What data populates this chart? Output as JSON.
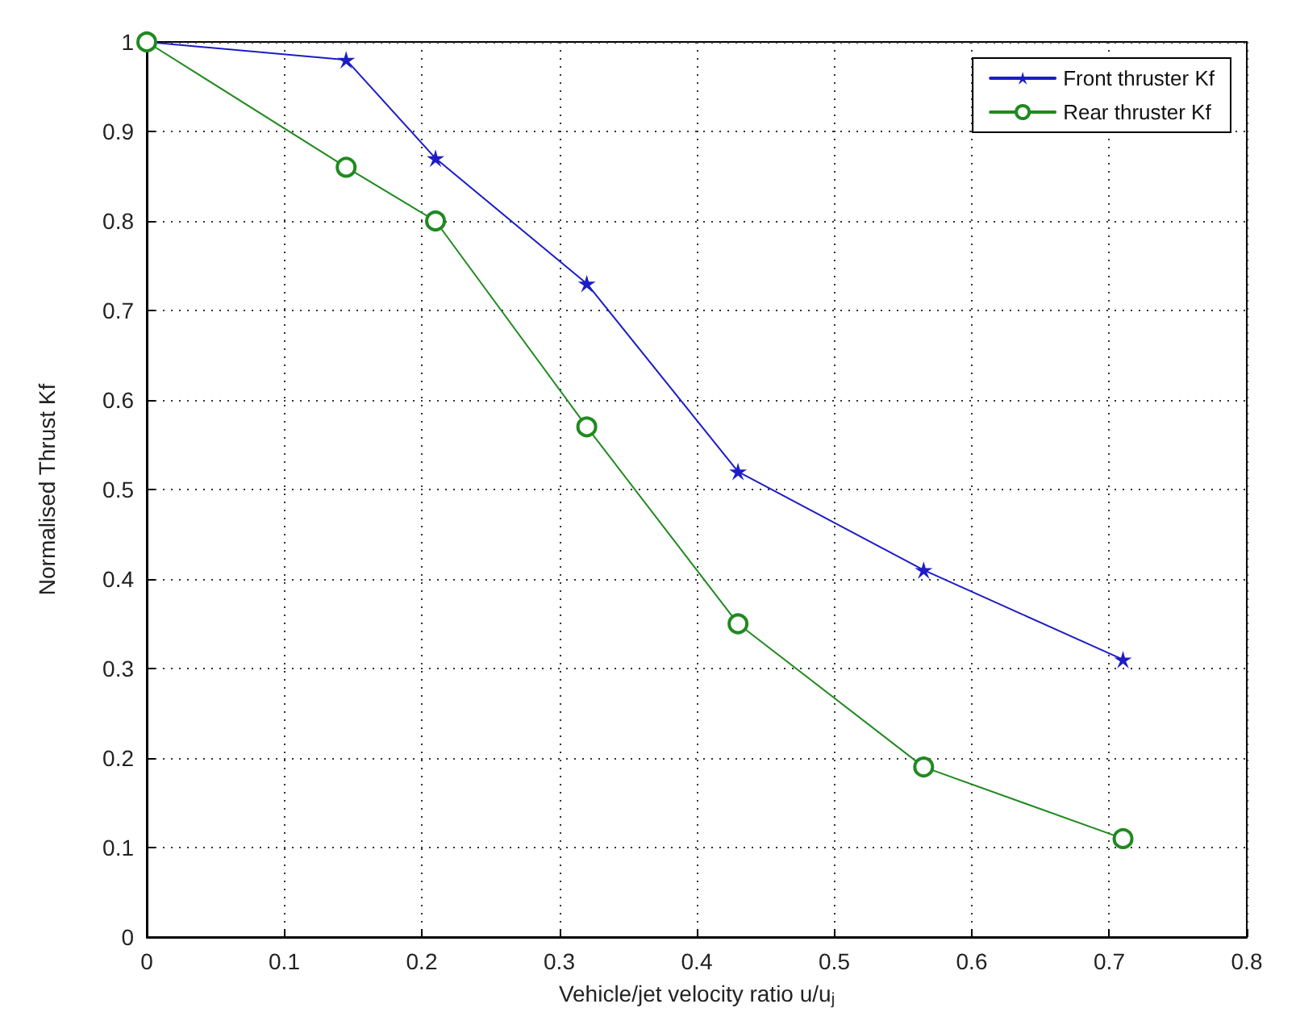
{
  "chart_data": {
    "type": "line",
    "xlabel": "Vehicle/jet velocity ratio u/u$_{j}$",
    "ylabel": "Normalised Thrust Kf",
    "x": [
      0,
      0.145,
      0.21,
      0.32,
      0.43,
      0.565,
      0.71
    ],
    "series": [
      {
        "name": "Front thruster Kf",
        "color": "#1c1cc8",
        "marker": "star",
        "values": [
          1,
          0.98,
          0.87,
          0.73,
          0.52,
          0.41,
          0.31
        ]
      },
      {
        "name": "Rear thruster Kf",
        "color": "#1f8a1f",
        "marker": "circle",
        "values": [
          1,
          0.86,
          0.8,
          0.57,
          0.35,
          0.19,
          0.11
        ]
      }
    ],
    "xlim": [
      0,
      0.8
    ],
    "xticks": [
      0,
      0.1,
      0.2,
      0.3,
      0.4,
      0.5,
      0.6,
      0.7,
      0.8
    ],
    "ylim": [
      0,
      1
    ],
    "yticks": [
      0,
      0.1,
      0.2,
      0.3,
      0.4,
      0.5,
      0.6,
      0.7,
      0.8,
      0.9,
      1
    ],
    "grid": true,
    "legend": "top right",
    "line_style": "solid"
  }
}
